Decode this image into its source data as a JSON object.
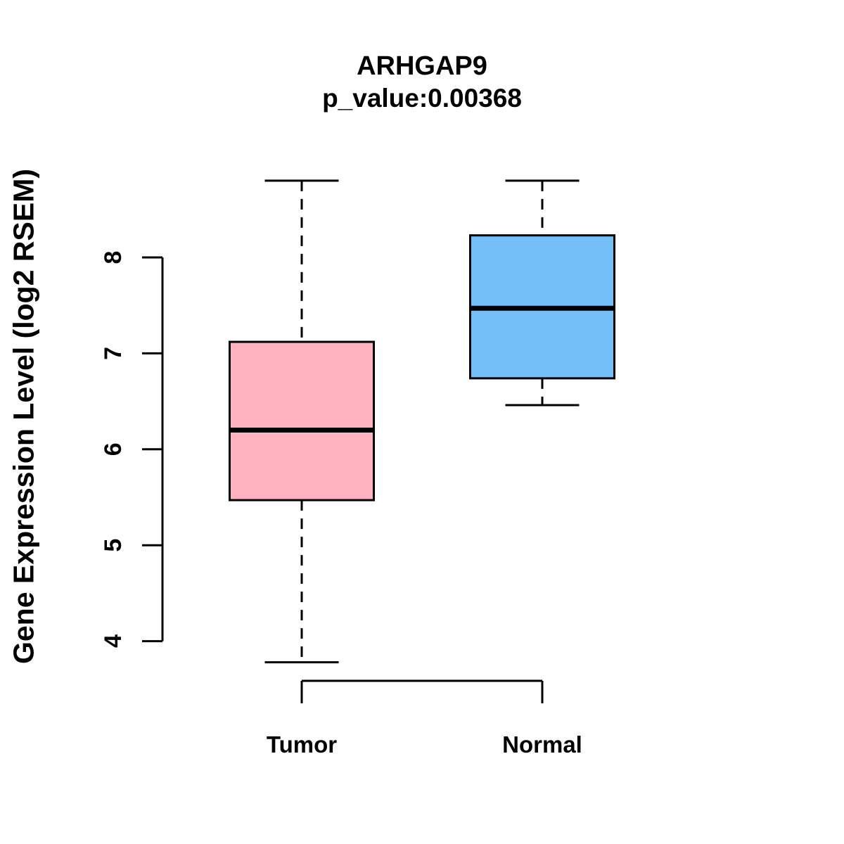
{
  "chart_data": {
    "type": "boxplot",
    "title": "ARHGAP9",
    "subtitle": "p_value:0.00368",
    "gene": "ARHGAP9",
    "p_value": 0.00368,
    "xlabel": "",
    "ylabel": "Gene Expression Level (log2 RSEM)",
    "categories": [
      "Tumor",
      "Normal"
    ],
    "yticks": [
      4,
      5,
      6,
      7,
      8
    ],
    "ylim": [
      3.6,
      8.9
    ],
    "grid": false,
    "legend": "none",
    "series": [
      {
        "name": "Tumor",
        "color": "#FFB3C1",
        "whisker_low": 3.78,
        "q1": 5.47,
        "median": 6.2,
        "q3": 7.12,
        "whisker_high": 8.8,
        "outliers": []
      },
      {
        "name": "Normal",
        "color": "#74BFF7",
        "whisker_low": 6.46,
        "q1": 6.74,
        "median": 7.47,
        "q3": 8.23,
        "whisker_high": 8.8,
        "outliers": []
      }
    ]
  },
  "colors": {
    "background": "#FFFFFF",
    "stroke": "#000000",
    "tumor_fill": "#FFB3C1",
    "normal_fill": "#74BFF7"
  }
}
